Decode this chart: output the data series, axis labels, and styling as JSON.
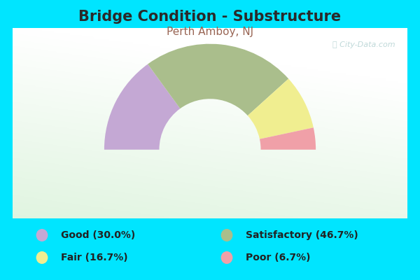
{
  "title": "Bridge Condition - Substructure",
  "subtitle": "Perth Amboy, NJ",
  "title_fontsize": 15,
  "subtitle_fontsize": 11,
  "title_color": "#2a2a2a",
  "subtitle_color": "#996655",
  "background_color": "#00e5ff",
  "watermark": "ⓘ City-Data.com",
  "segments": [
    {
      "label": "Good (30.0%)",
      "value": 30.0,
      "color": "#c4a8d4"
    },
    {
      "label": "Satisfactory (46.7%)",
      "value": 46.7,
      "color": "#aabe8c"
    },
    {
      "label": "Fair (16.7%)",
      "value": 16.7,
      "color": "#f0ee90"
    },
    {
      "label": "Poor (6.7%)",
      "value": 6.7,
      "color": "#f0a0a8"
    }
  ],
  "legend_labels": [
    "Good (30.0%)",
    "Satisfactory (46.7%)",
    "Fair (16.7%)",
    "Poor (6.7%)"
  ],
  "legend_colors": [
    "#c4a8d4",
    "#aabe8c",
    "#f0ee90",
    "#f0a0a8"
  ],
  "outer_r": 1.0,
  "inner_r": 0.48
}
